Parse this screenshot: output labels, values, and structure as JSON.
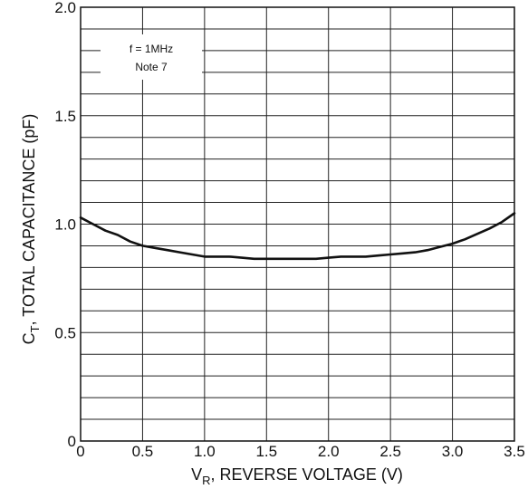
{
  "chart_data": {
    "type": "line",
    "xlabel": {
      "main": "V",
      "sub": "R",
      "rest": ", REVERSE VOLTAGE (V)"
    },
    "ylabel": {
      "main": "C",
      "sub": "T",
      "rest": ", TOTAL CAPACITANCE (pF)"
    },
    "xlim": [
      0,
      3.5
    ],
    "ylim": [
      0,
      2.0
    ],
    "x_ticks": [
      {
        "value": 0,
        "label": "0"
      },
      {
        "value": 0.5,
        "label": "0.5"
      },
      {
        "value": 1.0,
        "label": "1.0"
      },
      {
        "value": 1.5,
        "label": "1.5"
      },
      {
        "value": 2.0,
        "label": "2.0"
      },
      {
        "value": 2.5,
        "label": "2.5"
      },
      {
        "value": 3.0,
        "label": "3.0"
      },
      {
        "value": 3.5,
        "label": "3.5"
      }
    ],
    "y_ticks": [
      {
        "value": 0,
        "label": "0"
      },
      {
        "value": 0.5,
        "label": "0.5"
      },
      {
        "value": 1.0,
        "label": "1.0"
      },
      {
        "value": 1.5,
        "label": "1.5"
      },
      {
        "value": 2.0,
        "label": "2.0"
      }
    ],
    "grid": {
      "x_step": 0.5,
      "y_step": 0.1
    },
    "annotations": [
      "f = 1MHz",
      "Note 7"
    ],
    "series": [
      {
        "x": [
          0,
          0.1,
          0.2,
          0.3,
          0.4,
          0.5,
          0.6,
          0.7,
          0.8,
          0.9,
          1.0,
          1.1,
          1.2,
          1.3,
          1.4,
          1.5,
          1.6,
          1.7,
          1.8,
          1.9,
          2.0,
          2.1,
          2.2,
          2.3,
          2.4,
          2.5,
          2.6,
          2.7,
          2.8,
          2.9,
          3.0,
          3.1,
          3.2,
          3.3,
          3.4,
          3.5
        ],
        "values": [
          1.03,
          1.0,
          0.97,
          0.95,
          0.92,
          0.9,
          0.89,
          0.88,
          0.87,
          0.86,
          0.85,
          0.85,
          0.85,
          0.845,
          0.84,
          0.84,
          0.84,
          0.84,
          0.84,
          0.84,
          0.845,
          0.85,
          0.85,
          0.85,
          0.855,
          0.86,
          0.865,
          0.87,
          0.88,
          0.895,
          0.91,
          0.93,
          0.955,
          0.98,
          1.01,
          1.05
        ]
      }
    ]
  }
}
